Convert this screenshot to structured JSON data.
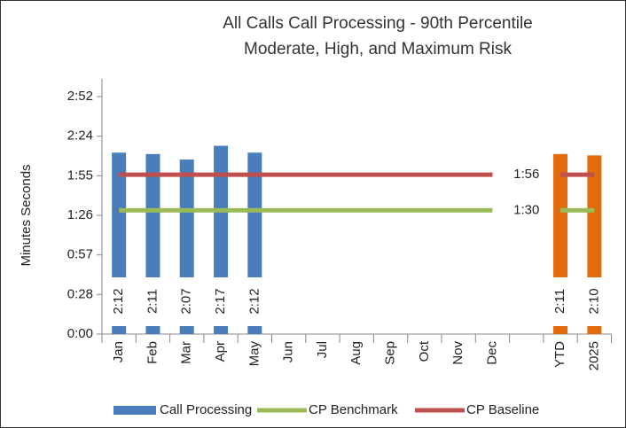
{
  "chart_data": {
    "type": "bar",
    "title": "All Calls Call Processing - 90th Percentile",
    "subtitle": "Moderate, High, and Maximum Risk",
    "y_label": "Minutes Seconds",
    "categories": [
      "Jan",
      "Feb",
      "Mar",
      "Apr",
      "May",
      "Jun",
      "Jul",
      "Aug",
      "Sep",
      "Oct",
      "Nov",
      "Dec",
      null,
      "YTD",
      "2025"
    ],
    "ylim": [
      0,
      172.8
    ],
    "yticks": [
      {
        "value": 0,
        "label": "0:00"
      },
      {
        "value": 28.8,
        "label": "0:28"
      },
      {
        "value": 57.6,
        "label": "0:57"
      },
      {
        "value": 86.4,
        "label": "1:26"
      },
      {
        "value": 115.2,
        "label": "1:55"
      },
      {
        "value": 144,
        "label": "2:24"
      },
      {
        "value": 172.8,
        "label": "2:52"
      }
    ],
    "grid": false,
    "legend": "bottom",
    "series": [
      {
        "name": "Call Processing",
        "type": "bar",
        "color": "#4a7ebb",
        "colors": [
          "#4a7ebb",
          "#4a7ebb",
          "#4a7ebb",
          "#4a7ebb",
          "#4a7ebb",
          "#4a7ebb",
          "#4a7ebb",
          "#4a7ebb",
          "#4a7ebb",
          "#4a7ebb",
          "#4a7ebb",
          "#4a7ebb",
          "#4a7ebb",
          "#e36c0a",
          "#e36c0a"
        ],
        "values": [
          132,
          131,
          127,
          137,
          132,
          null,
          null,
          null,
          null,
          null,
          null,
          null,
          null,
          131,
          130
        ],
        "value_labels": [
          "2:12",
          "2:11",
          "2:07",
          "2:17",
          "2:12",
          null,
          null,
          null,
          null,
          null,
          null,
          null,
          null,
          "2:11",
          "2:10"
        ]
      },
      {
        "name": "CP Benchmark",
        "type": "line",
        "color": "#9bbb59",
        "values": [
          90,
          90,
          90,
          90,
          90,
          90,
          90,
          90,
          90,
          90,
          90,
          90,
          null,
          90,
          90
        ],
        "value_labels": [
          null,
          null,
          null,
          null,
          null,
          null,
          null,
          null,
          null,
          null,
          null,
          "1:30",
          null,
          null,
          null
        ]
      },
      {
        "name": "CP Baseline",
        "type": "line",
        "color": "#c0504d",
        "values": [
          116,
          116,
          116,
          116,
          116,
          116,
          116,
          116,
          116,
          116,
          116,
          116,
          null,
          116,
          116
        ],
        "value_labels": [
          null,
          null,
          null,
          null,
          null,
          null,
          null,
          null,
          null,
          null,
          null,
          "1:56",
          null,
          null,
          null
        ]
      }
    ]
  }
}
